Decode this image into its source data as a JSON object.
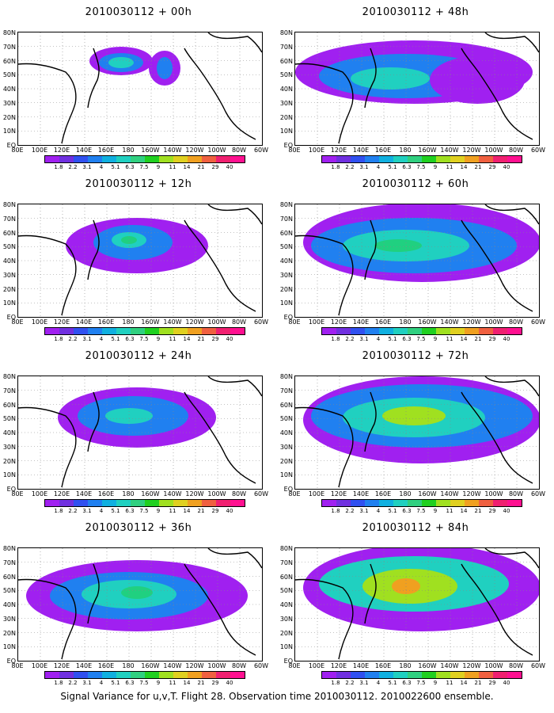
{
  "panels": [
    {
      "title": "2010030112 + 00h"
    },
    {
      "title": "2010030112 + 48h"
    },
    {
      "title": "2010030112 + 12h"
    },
    {
      "title": "2010030112 + 60h"
    },
    {
      "title": "2010030112 + 24h"
    },
    {
      "title": "2010030112 + 72h"
    },
    {
      "title": "2010030112 + 36h"
    },
    {
      "title": "2010030112 + 84h"
    }
  ],
  "lat_labels": [
    "80N",
    "70N",
    "60N",
    "50N",
    "40N",
    "30N",
    "20N",
    "10N",
    "EQ"
  ],
  "lon_labels": [
    "80E",
    "100E",
    "120E",
    "140E",
    "160E",
    "180",
    "160W",
    "140W",
    "120W",
    "100W",
    "80W",
    "60W"
  ],
  "colorbar": {
    "labels": [
      "1.8",
      "2.2",
      "3.1",
      "4",
      "5.1",
      "6.3",
      "7.5",
      "9",
      "11",
      "14",
      "21",
      "29",
      "40"
    ],
    "colors": [
      "#a020f0",
      "#7030e0",
      "#3050f0",
      "#2080f0",
      "#10b0e0",
      "#20d0c0",
      "#30d080",
      "#20d020",
      "#a0e020",
      "#e0d020",
      "#f0a020",
      "#f06040",
      "#f02070",
      "#ff1090"
    ]
  },
  "footer": "Signal Variance for u,v,T. Flight 28. Observation time 2010030112. 2010022600 ensemble."
}
